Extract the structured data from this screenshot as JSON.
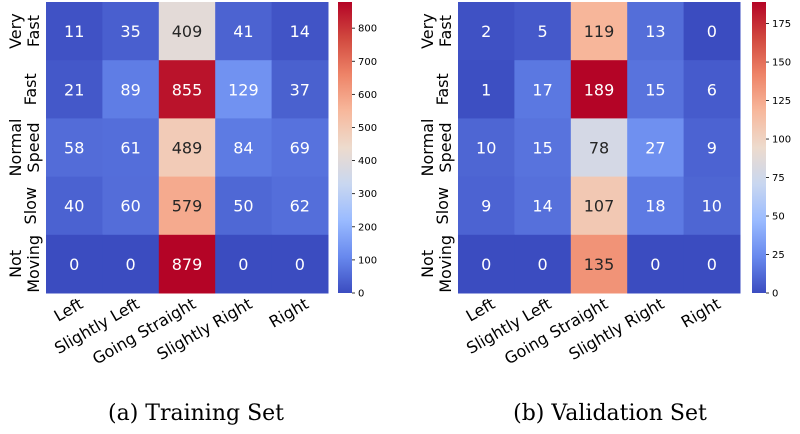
{
  "chart_data": [
    {
      "type": "heatmap",
      "caption": "(a) Training Set",
      "row_labels": [
        "Very Fast",
        "Fast",
        "Normal Speed",
        "Slow",
        "Not Moving"
      ],
      "col_labels": [
        "Left",
        "Slightly Left",
        "Going Straight",
        "Slightly Right",
        "Right"
      ],
      "values": [
        [
          11,
          35,
          409,
          41,
          14
        ],
        [
          21,
          89,
          855,
          129,
          37
        ],
        [
          58,
          61,
          489,
          84,
          69
        ],
        [
          40,
          60,
          579,
          50,
          62
        ],
        [
          0,
          0,
          879,
          0,
          0
        ]
      ],
      "colorbar": {
        "min": 0,
        "max": 879,
        "ticks": [
          0,
          100,
          200,
          300,
          400,
          500,
          600,
          700,
          800
        ]
      },
      "colormap": "coolwarm"
    },
    {
      "type": "heatmap",
      "caption": "(b) Validation Set",
      "row_labels": [
        "Very Fast",
        "Fast",
        "Normal Speed",
        "Slow",
        "Not Moving"
      ],
      "col_labels": [
        "Left",
        "Slightly Left",
        "Going Straight",
        "Slightly Right",
        "Right"
      ],
      "values": [
        [
          2,
          5,
          119,
          13,
          0
        ],
        [
          1,
          17,
          189,
          15,
          6
        ],
        [
          10,
          15,
          78,
          27,
          9
        ],
        [
          9,
          14,
          107,
          18,
          10
        ],
        [
          0,
          0,
          135,
          0,
          0
        ]
      ],
      "colorbar": {
        "min": 0,
        "max": 189,
        "ticks": [
          0,
          25,
          50,
          75,
          100,
          125,
          150,
          175
        ]
      },
      "colormap": "coolwarm"
    }
  ],
  "colors": {
    "colormap_stops": [
      "#3b4cc0",
      "#6889ee",
      "#9abbff",
      "#c9d7f0",
      "#eddbcd",
      "#f7b89c",
      "#ee8468",
      "#d1493f",
      "#b40426"
    ],
    "light_text": "#ffffff",
    "dark_text": "#262626"
  }
}
